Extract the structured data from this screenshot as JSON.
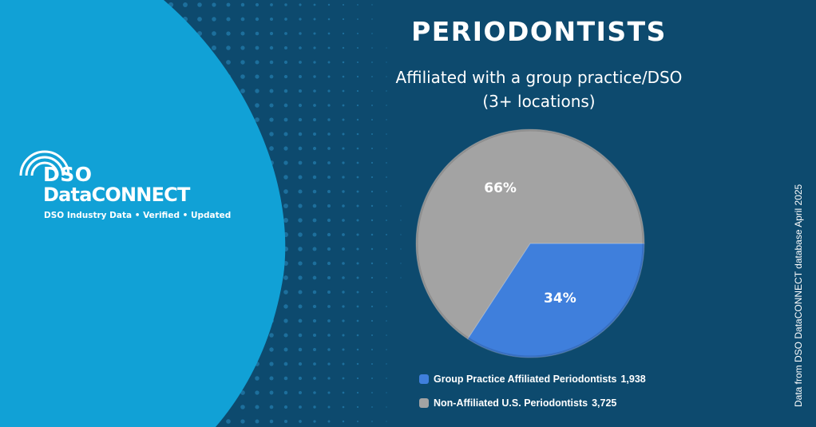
{
  "colors": {
    "background": "#0d4a6e",
    "panel": "#11a1d6",
    "dots": "#2b8ec2",
    "affiliated": "#3f7fdc",
    "non_affiliated": "#a3a3a3"
  },
  "logo": {
    "line1": "DSO",
    "line2": "DataCONNECT",
    "tagline": "DSO Industry Data • Verified • Updated",
    "icon": "signal-arcs-icon"
  },
  "header": {
    "title": "PERIODONTISTS",
    "subtitle_line1": "Affiliated with a group practice/DSO",
    "subtitle_line2": "(3+ locations)"
  },
  "chart_data": {
    "type": "pie",
    "slices": [
      {
        "label": "Group Practice Affiliated Periodontists",
        "value": 1938,
        "display_value": "1,938",
        "percent_label": "34%",
        "color": "#3f7fdc"
      },
      {
        "label": "Non-Affiliated U.S. Periodontists",
        "value": 3725,
        "display_value": "3,725",
        "percent_label": "66%",
        "color": "#a3a3a3"
      }
    ],
    "legend_placement": "bottom"
  },
  "source_note": "Data from DSO DataCONNECT database April 2025"
}
